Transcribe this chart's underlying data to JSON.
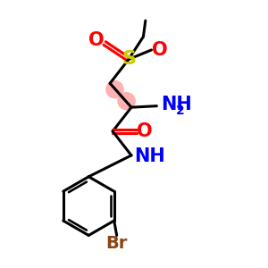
{
  "bg_color": "#ffffff",
  "atom_colors": {
    "C": "#000000",
    "O": "#ff0000",
    "N": "#0000ff",
    "S": "#cccc00",
    "Br": "#8B4513",
    "H": "#000000"
  },
  "bond_color": "#000000",
  "highlight_color": "#ffaaaa",
  "bond_lw": 2.2,
  "font_size_atom": 15,
  "font_size_sub": 10,
  "figsize": [
    3.0,
    3.0
  ],
  "dpi": 100
}
